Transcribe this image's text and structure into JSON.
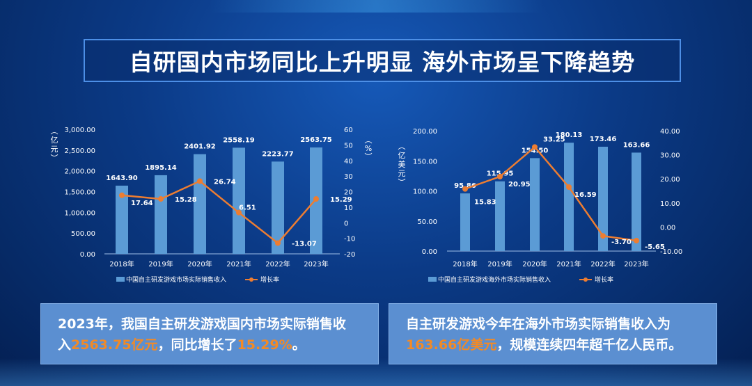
{
  "title": "自研国内市场同比上升明显 海外市场呈下降趋势",
  "colors": {
    "bar": "#5b9bd5",
    "line": "#ed7d31",
    "highlight": "#f28a26"
  },
  "chart_data": [
    {
      "type": "bar",
      "categories": [
        "2018年",
        "2019年",
        "2020年",
        "2021年",
        "2022年",
        "2023年"
      ],
      "series": [
        {
          "name": "中国自主研发游戏市场实际销售收入",
          "type": "bar",
          "axis": "left",
          "values": [
            1643.9,
            1895.14,
            2401.92,
            2558.19,
            2223.77,
            2563.75
          ],
          "labels": [
            "1643.90",
            "1895.14",
            "2401.92",
            "2558.19",
            "2223.77",
            "2563.75"
          ]
        },
        {
          "name": "增长率",
          "type": "line",
          "axis": "right",
          "values": [
            17.64,
            15.28,
            26.74,
            6.51,
            -13.07,
            15.29
          ],
          "labels": [
            "17.64",
            "15.28",
            "26.74",
            "6.51",
            "-13.07",
            "15.29"
          ]
        }
      ],
      "ylabel": "亿元",
      "y2label": "%",
      "ylim": [
        0,
        3000
      ],
      "y2lim": [
        -20,
        60
      ],
      "yticks": [
        "0.00",
        "500.00",
        "1,000.00",
        "1,500.00",
        "2,000.00",
        "2,500.00",
        "3,000.00"
      ],
      "y2ticks": [
        "-20",
        "-10",
        "0",
        "10",
        "20",
        "30",
        "40",
        "50",
        "60"
      ],
      "legend": "bottom"
    },
    {
      "type": "bar",
      "categories": [
        "2018年",
        "2019年",
        "2020年",
        "2021年",
        "2022年",
        "2023年"
      ],
      "series": [
        {
          "name": "中国自主研发游戏海外市场实际销售收入",
          "type": "bar",
          "axis": "left",
          "values": [
            95.86,
            115.95,
            154.5,
            180.13,
            173.46,
            163.66
          ],
          "labels": [
            "95.86",
            "115.95",
            "154.50",
            "180.13",
            "173.46",
            "163.66"
          ]
        },
        {
          "name": "增长率",
          "type": "line",
          "axis": "right",
          "values": [
            15.83,
            20.95,
            33.25,
            16.59,
            -3.7,
            -5.65
          ],
          "labels": [
            "15.83",
            "20.95",
            "33.25",
            "16.59",
            "-3.70",
            "-5.65"
          ]
        }
      ],
      "ylabel": "亿美元",
      "y2label": "",
      "ylim": [
        0,
        200
      ],
      "y2lim": [
        -10,
        40
      ],
      "yticks": [
        "0.00",
        "50.00",
        "100.00",
        "150.00",
        "200.00"
      ],
      "y2ticks": [
        "-10.00",
        "0.00",
        "10.00",
        "20.00",
        "30.00",
        "40.00"
      ],
      "legend": "bottom"
    }
  ],
  "notes": {
    "left": {
      "line1": "2023年，我国自主研发游戏国内市场实际销售收",
      "prefix": "入",
      "amount": "2563.75亿元",
      "mid": "，同比增长了",
      "pct": "15.29%",
      "suffix": "。"
    },
    "right": {
      "line1": "自主研发游戏今年在海外市场实际销售收入为",
      "amount": "163.66亿美元",
      "suffix": "，规模连续四年超千亿人民币。"
    }
  }
}
